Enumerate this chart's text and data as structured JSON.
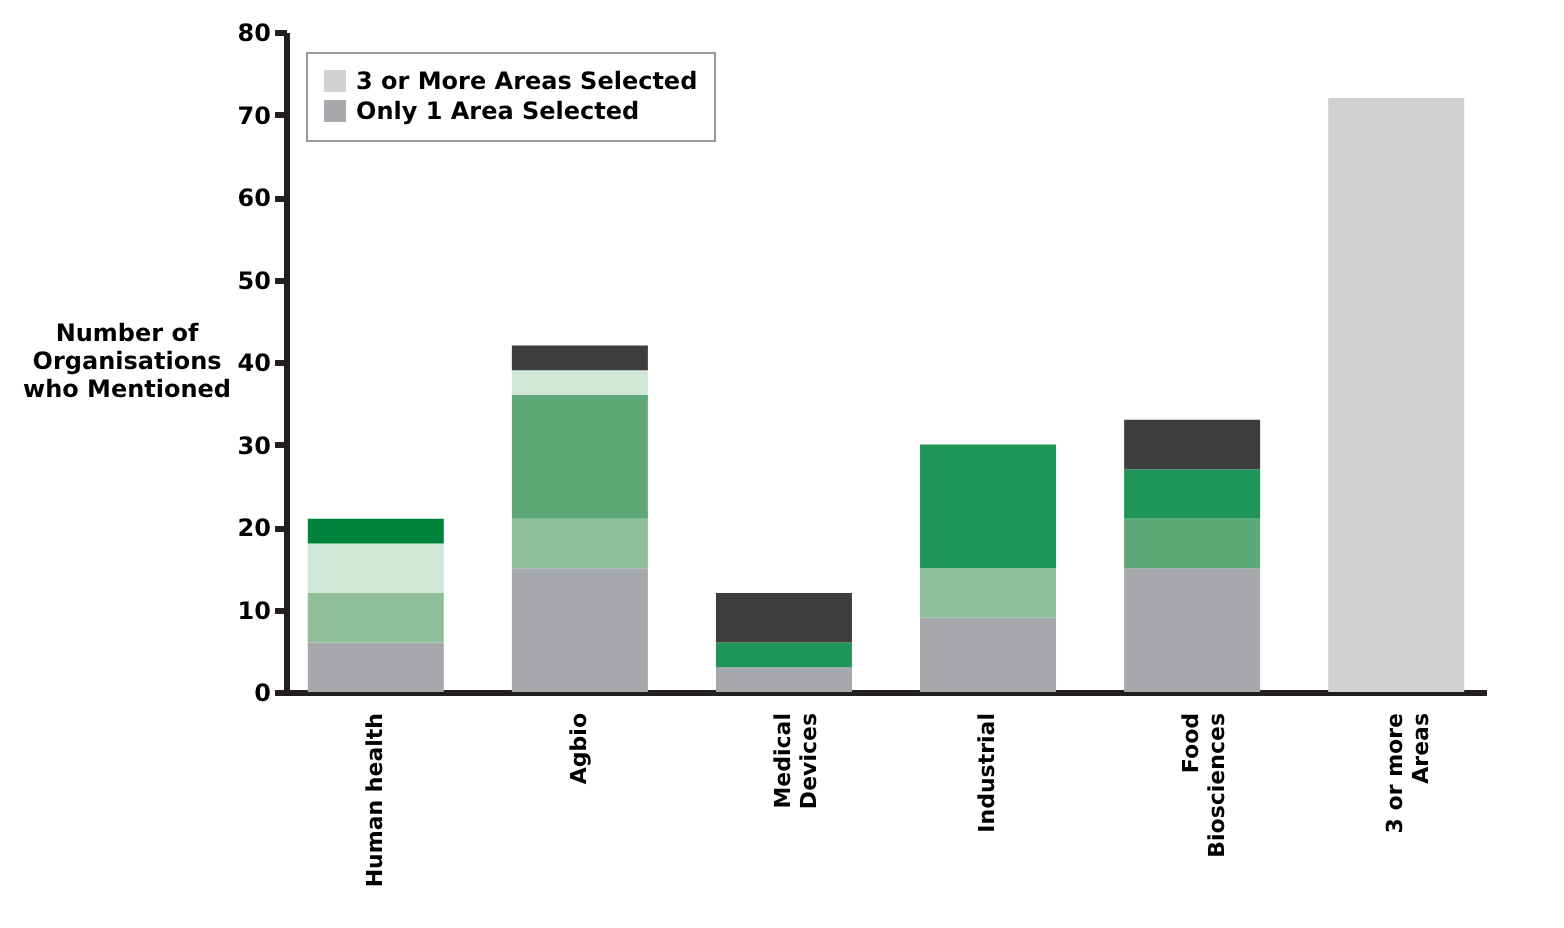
{
  "chart_data": {
    "type": "bar",
    "stacked": true,
    "ylabel": "Number of Organisations who Mentioned",
    "categories": [
      "Human health",
      "Agbio",
      "Medical Devices",
      "Industrial",
      "Food Biosciences",
      "3 or more Areas"
    ],
    "series": [
      {
        "name": "Only 1 Area Selected",
        "color": "#a7a8ab",
        "values": [
          6,
          15,
          3,
          9,
          15,
          null
        ]
      },
      {
        "color": "#8fbf9a",
        "values": [
          6,
          6,
          null,
          6,
          null,
          null
        ]
      },
      {
        "color": "#5fa877",
        "values": [
          null,
          15,
          null,
          null,
          6,
          null
        ]
      },
      {
        "color": "#d0e6d6",
        "values": [
          6,
          3,
          null,
          null,
          null,
          null
        ]
      },
      {
        "color": "#1f9559",
        "values": [
          null,
          null,
          3,
          15,
          6,
          null
        ]
      },
      {
        "color": "#00843d",
        "values": [
          3,
          null,
          null,
          null,
          null,
          null
        ]
      },
      {
        "color": "#3d3d3d",
        "values": [
          null,
          3,
          6,
          null,
          6,
          null
        ]
      },
      {
        "name": "3 or More Areas Selected",
        "color": "#d0d1d3",
        "values": [
          null,
          null,
          null,
          null,
          null,
          72
        ]
      }
    ],
    "ylim": [
      0,
      80
    ],
    "yticks": [
      0,
      10,
      20,
      30,
      40,
      50,
      60,
      70,
      80
    ],
    "grid": false,
    "legend": "top left"
  }
}
